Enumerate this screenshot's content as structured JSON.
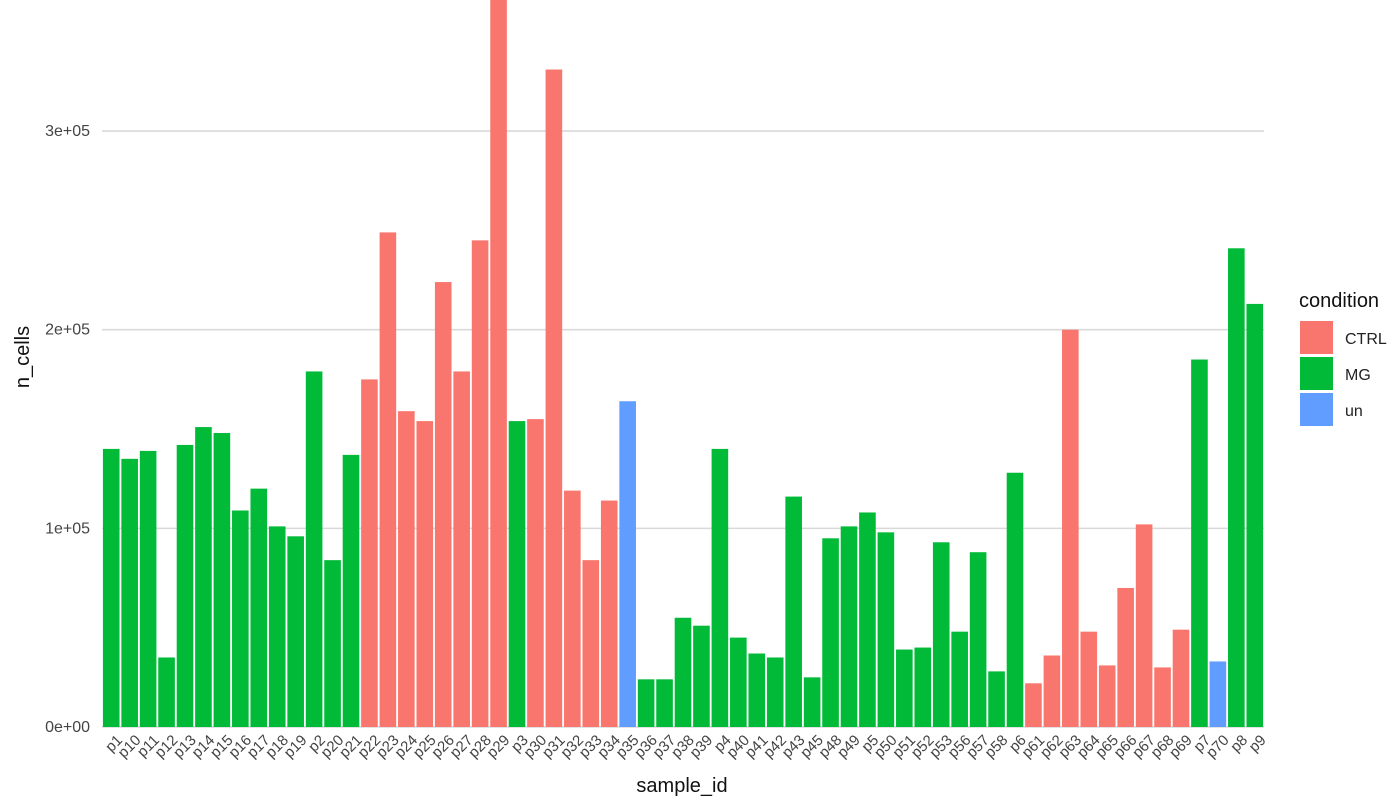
{
  "chart_data": {
    "type": "bar",
    "xlabel": "sample_id",
    "ylabel": "n_cells",
    "ylim": [
      0,
      366000
    ],
    "yticks": [
      0,
      100000,
      200000,
      300000
    ],
    "ytick_labels": [
      "0e+00",
      "1e+05",
      "2e+05",
      "3e+05"
    ],
    "grid": true,
    "legend": {
      "title": "condition",
      "position": "right",
      "entries": [
        {
          "label": "CTRL",
          "color": "#F8766D"
        },
        {
          "label": "MG",
          "color": "#00BA38"
        },
        {
          "label": "un",
          "color": "#619CFF"
        }
      ]
    },
    "categories": [
      "p1",
      "p10",
      "p11",
      "p12",
      "p13",
      "p14",
      "p15",
      "p16",
      "p17",
      "p18",
      "p19",
      "p2",
      "p20",
      "p21",
      "p22",
      "p23",
      "p24",
      "p25",
      "p26",
      "p27",
      "p28",
      "p29",
      "p3",
      "p30",
      "p31",
      "p32",
      "p33",
      "p34",
      "p35",
      "p36",
      "p37",
      "p38",
      "p39",
      "p4",
      "p40",
      "p41",
      "p42",
      "p43",
      "p45",
      "p48",
      "p49",
      "p5",
      "p50",
      "p51",
      "p52",
      "p53",
      "p56",
      "p57",
      "p58",
      "p6",
      "p61",
      "p62",
      "p63",
      "p64",
      "p65",
      "p66",
      "p67",
      "p68",
      "p69",
      "p7",
      "p70",
      "p8",
      "p9"
    ],
    "values": [
      140000,
      135000,
      139000,
      35000,
      142000,
      151000,
      148000,
      109000,
      120000,
      101000,
      96000,
      179000,
      84000,
      137000,
      175000,
      249000,
      159000,
      154000,
      224000,
      179000,
      245000,
      366000,
      154000,
      155000,
      331000,
      119000,
      84000,
      114000,
      164000,
      24000,
      24000,
      55000,
      51000,
      140000,
      45000,
      37000,
      35000,
      116000,
      25000,
      95000,
      101000,
      108000,
      98000,
      39000,
      40000,
      93000,
      48000,
      88000,
      28000,
      128000,
      22000,
      36000,
      200000,
      48000,
      31000,
      70000,
      102000,
      30000,
      49000,
      185000,
      33000,
      241000,
      213000
    ],
    "condition": [
      "MG",
      "MG",
      "MG",
      "MG",
      "MG",
      "MG",
      "MG",
      "MG",
      "MG",
      "MG",
      "MG",
      "MG",
      "MG",
      "MG",
      "CTRL",
      "CTRL",
      "CTRL",
      "CTRL",
      "CTRL",
      "CTRL",
      "CTRL",
      "CTRL",
      "MG",
      "CTRL",
      "CTRL",
      "CTRL",
      "CTRL",
      "CTRL",
      "un",
      "MG",
      "MG",
      "MG",
      "MG",
      "MG",
      "MG",
      "MG",
      "MG",
      "MG",
      "MG",
      "MG",
      "MG",
      "MG",
      "MG",
      "MG",
      "MG",
      "MG",
      "MG",
      "MG",
      "MG",
      "MG",
      "CTRL",
      "CTRL",
      "CTRL",
      "CTRL",
      "CTRL",
      "CTRL",
      "CTRL",
      "CTRL",
      "CTRL",
      "MG",
      "un",
      "MG",
      "MG"
    ]
  }
}
